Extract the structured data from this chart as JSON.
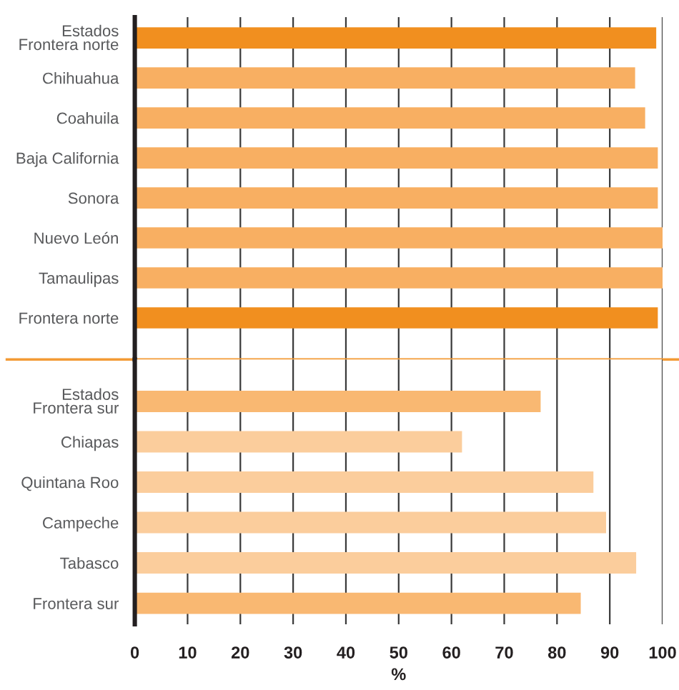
{
  "chart_data": [
    {
      "type": "bar",
      "orientation": "horizontal",
      "categories": [
        "Estados\nFrontera norte",
        "Chihuahua",
        "Coahuila",
        "Baja California",
        "Sonora",
        "Nuevo León",
        "Tamaulipas",
        "Frontera norte"
      ],
      "values": [
        98.8,
        94.8,
        96.7,
        99.1,
        99.1,
        100,
        100,
        99.1
      ],
      "colors": [
        "#f18f1f",
        "#f8af62",
        "#f8af62",
        "#f8af62",
        "#f8af62",
        "#f8af62",
        "#f8af62",
        "#f18f1f"
      ],
      "xlim": [
        0,
        100
      ],
      "xticks": [
        0,
        10,
        20,
        30,
        40,
        50,
        60,
        70,
        80,
        90,
        100
      ],
      "grid": "x",
      "tick_labels": "y"
    },
    {
      "type": "bar",
      "orientation": "horizontal",
      "categories": [
        "Estados\nFrontera sur",
        "Chiapas",
        "Quintana Roo",
        "Campeche",
        "Tabasco",
        "Frontera sur"
      ],
      "values": [
        76.9,
        62.0,
        86.9,
        89.3,
        95.0,
        84.5
      ],
      "colors": [
        "#f9b872",
        "#fbcd9c",
        "#fbcd9c",
        "#fbcd9c",
        "#fbcd9c",
        "#f9b872"
      ],
      "xlim": [
        0,
        100
      ],
      "xticks": [
        0,
        10,
        20,
        30,
        40,
        50,
        60,
        70,
        80,
        90,
        100
      ],
      "grid": "x",
      "xlabel": "%"
    }
  ]
}
